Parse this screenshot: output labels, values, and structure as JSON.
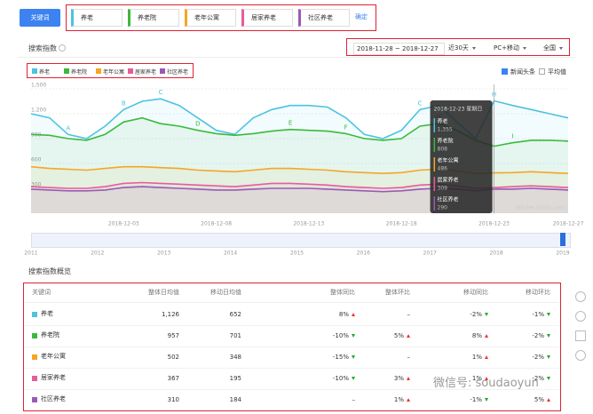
{
  "toolbar": {
    "button": "关键词",
    "keywords": [
      {
        "text": "养老",
        "color": "#4cc3e0"
      },
      {
        "text": "养老院",
        "color": "#3cb93c"
      },
      {
        "text": "老年公寓",
        "color": "#f5a623"
      },
      {
        "text": "居家养老",
        "color": "#e75c9a"
      },
      {
        "text": "社区养老",
        "color": "#9b59b6"
      }
    ],
    "confirm": "确定"
  },
  "section_title": "搜索指数",
  "filters": {
    "date_range": "2018-11-28 ~ 2018-12-27",
    "period": "近30天",
    "device": "PC+移动",
    "region": "全国"
  },
  "options": [
    {
      "label": "新闻头条",
      "checked": true
    },
    {
      "label": "平均值",
      "checked": false
    }
  ],
  "chart_data": {
    "type": "line",
    "categories": [
      null,
      null,
      null,
      null,
      null,
      "2018-12-03",
      null,
      null,
      null,
      null,
      "2018-12-08",
      null,
      null,
      null,
      null,
      "2018-12-13",
      null,
      null,
      null,
      null,
      "2018-12-18",
      null,
      null,
      null,
      null,
      "2018-12-23",
      null,
      null,
      null,
      "2018-12-27"
    ],
    "series": [
      {
        "name": "养老",
        "color": "#4cc3e0",
        "values": [
          1200,
          1150,
          950,
          900,
          1050,
          1250,
          1350,
          1380,
          1300,
          1150,
          1000,
          950,
          1150,
          1250,
          1300,
          1300,
          1280,
          1150,
          950,
          900,
          1000,
          1250,
          1300,
          1100,
          900,
          1355,
          1300,
          1250,
          1200,
          1150
        ]
      },
      {
        "name": "养老院",
        "color": "#3cb93c",
        "values": [
          950,
          940,
          900,
          880,
          950,
          1100,
          1150,
          1080,
          1050,
          1000,
          960,
          940,
          960,
          990,
          1010,
          1000,
          990,
          960,
          900,
          880,
          900,
          1050,
          1080,
          1000,
          880,
          808,
          850,
          880,
          880,
          870
        ]
      },
      {
        "name": "老年公寓",
        "color": "#f5a623",
        "values": [
          560,
          540,
          530,
          520,
          540,
          560,
          560,
          550,
          540,
          520,
          510,
          500,
          520,
          540,
          540,
          530,
          520,
          500,
          490,
          480,
          490,
          520,
          530,
          510,
          480,
          486,
          490,
          500,
          490,
          480
        ]
      },
      {
        "name": "居家养老",
        "color": "#e75c9a",
        "values": [
          320,
          310,
          300,
          300,
          320,
          360,
          370,
          360,
          350,
          340,
          330,
          320,
          340,
          360,
          360,
          350,
          340,
          320,
          310,
          300,
          310,
          340,
          350,
          330,
          300,
          309,
          320,
          330,
          320,
          310
        ]
      },
      {
        "name": "社区养老",
        "color": "#9b59b6",
        "values": [
          290,
          280,
          270,
          270,
          280,
          310,
          320,
          310,
          300,
          290,
          280,
          280,
          290,
          300,
          300,
          300,
          290,
          280,
          270,
          260,
          270,
          290,
          300,
          290,
          270,
          290,
          290,
          300,
          290,
          280
        ]
      }
    ],
    "ylim": [
      0,
      1500
    ],
    "yticks": [
      300,
      600,
      900,
      {
        "value": 1200,
        "label": "1,200"
      },
      {
        "value": 1500,
        "label": "1,500"
      }
    ],
    "grid": true,
    "annotations": [
      {
        "label": "A",
        "series": 0,
        "index": 2
      },
      {
        "label": "B",
        "series": 0,
        "index": 5
      },
      {
        "label": "C",
        "series": 0,
        "index": 7
      },
      {
        "label": "D",
        "series": 1,
        "index": 9
      },
      {
        "label": "E",
        "series": 1,
        "index": 14
      },
      {
        "label": "F",
        "series": 1,
        "index": 17
      },
      {
        "label": "G",
        "series": 1,
        "index": 22
      },
      {
        "label": "C",
        "series": 0,
        "index": 21
      },
      {
        "label": "H",
        "series": 0,
        "index": 25
      },
      {
        "label": "I",
        "series": 1,
        "index": 26
      }
    ],
    "tooltip": {
      "title": "2018-12-23 星期日",
      "values": [
        "1,355",
        "808",
        "486",
        "309",
        "290"
      ]
    },
    "watermark": "@index.baidu.com"
  },
  "timeline": {
    "years": [
      "2011",
      "2012",
      "2013",
      "2014",
      "2015",
      "2016",
      "2017",
      "2018",
      "2019"
    ]
  },
  "overview": {
    "title": "搜索指数概览",
    "table": {
      "header": [
        "关键词",
        "整体日均值",
        "移动日均值",
        "整体同比",
        "整体环比",
        "移动同比",
        "移动环比"
      ],
      "rows": [
        [
          "养老",
          "1,126",
          "652",
          {
            "text": "8%",
            "trend": "up"
          },
          "–",
          {
            "text": "-2%",
            "trend": "down"
          },
          {
            "text": "-1%",
            "trend": "down"
          }
        ],
        [
          "养老院",
          "957",
          "701",
          {
            "text": "-10%",
            "trend": "down"
          },
          {
            "text": "5%",
            "trend": "up"
          },
          {
            "text": "8%",
            "trend": "up"
          },
          {
            "text": "-2%",
            "trend": "down"
          }
        ],
        [
          "老年公寓",
          "502",
          "348",
          {
            "text": "-15%",
            "trend": "down"
          },
          "–",
          {
            "text": "1%",
            "trend": "up"
          },
          {
            "text": "-2%",
            "trend": "down"
          }
        ],
        [
          "居家养老",
          "367",
          "195",
          {
            "text": "-10%",
            "trend": "down"
          },
          {
            "text": "3%",
            "trend": "up"
          },
          {
            "text": "1%",
            "trend": "up"
          },
          {
            "text": "-2%",
            "trend": "down"
          }
        ],
        [
          "社区养老",
          "310",
          "184",
          "–",
          {
            "text": "1%",
            "trend": "up"
          },
          {
            "text": "-1%",
            "trend": "down"
          },
          {
            "text": "5%",
            "trend": "up"
          }
        ]
      ]
    }
  },
  "footer_watermark": "微信号: soudaoyun"
}
